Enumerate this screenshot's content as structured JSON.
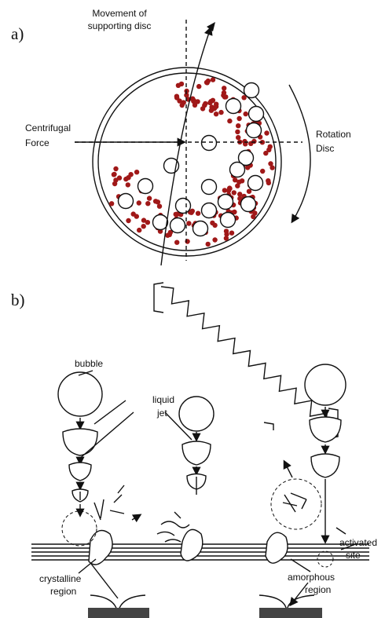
{
  "panel_a": {
    "label": "a)",
    "movement": [
      "Movement of",
      "supporting disc"
    ],
    "centrifugal": [
      "Centrifugal",
      "Force"
    ],
    "rotation": [
      "Rotation",
      "Disc"
    ]
  },
  "panel_b": {
    "label": "b)",
    "bubble": "bubble",
    "liquid_jet": [
      "liquid",
      "jet"
    ],
    "crystalline": [
      "crystalline",
      "region"
    ],
    "amorphous": [
      "amorphous",
      "region"
    ],
    "activated": [
      "activated",
      "site"
    ]
  }
}
